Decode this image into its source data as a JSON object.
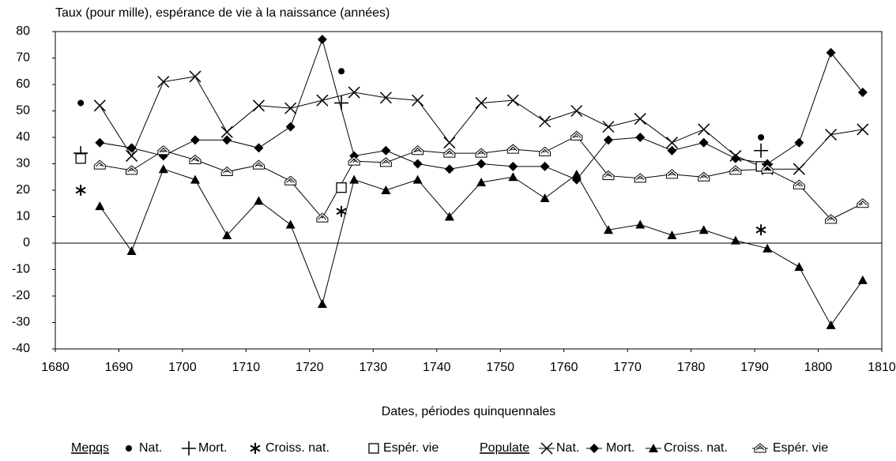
{
  "chart_data": {
    "type": "scatter",
    "ylabel": "Taux (pour mille), espérance de vie à la naissance (années)",
    "xlabel": "Dates, périodes quinquennales",
    "xlim": [
      1680,
      1810
    ],
    "xticks": [
      1680,
      1690,
      1700,
      1710,
      1720,
      1730,
      1740,
      1750,
      1760,
      1770,
      1780,
      1790,
      1800,
      1810
    ],
    "ylim": [
      -40,
      80
    ],
    "yticks": [
      -40,
      -30,
      -20,
      -10,
      0,
      10,
      20,
      30,
      40,
      50,
      60,
      70,
      80
    ],
    "zero_line": true,
    "series_groups": [
      {
        "name": "Mepqs",
        "connect": false,
        "x": [
          1684,
          1725,
          1791
        ],
        "series": [
          {
            "name": "Nat.",
            "marker": "dot",
            "color": "#000000",
            "values": [
              53,
              65,
              40
            ]
          },
          {
            "name": "Mort.",
            "marker": "plus",
            "color": "#000000",
            "values": [
              34,
              53,
              35
            ]
          },
          {
            "name": "Croiss. nat.",
            "marker": "star",
            "color": "#000000",
            "values": [
              20,
              12,
              5
            ]
          },
          {
            "name": "Espér. vie",
            "marker": "square",
            "color": "#000000",
            "values": [
              32,
              21,
              29
            ]
          }
        ]
      },
      {
        "name": "Populate",
        "connect": true,
        "x": [
          1687,
          1692,
          1697,
          1702,
          1707,
          1712,
          1717,
          1722,
          1727,
          1732,
          1737,
          1742,
          1747,
          1752,
          1757,
          1762,
          1767,
          1772,
          1777,
          1782,
          1787,
          1792,
          1797,
          1802,
          1807
        ],
        "series": [
          {
            "name": "Nat.",
            "marker": "x",
            "color": "#000000",
            "values": [
              52,
              33,
              61,
              63,
              42,
              52,
              51,
              54,
              57,
              55,
              54,
              38,
              53,
              54,
              46,
              50,
              44,
              47,
              38,
              43,
              33,
              28,
              28,
              41,
              43
            ]
          },
          {
            "name": "Mort.",
            "marker": "diamond",
            "color": "#000000",
            "values": [
              38,
              36,
              33,
              39,
              39,
              36,
              44,
              77,
              33,
              35,
              30,
              28,
              30,
              29,
              29,
              24,
              39,
              40,
              35,
              38,
              32,
              30,
              38,
              72,
              57
            ]
          },
          {
            "name": "Croiss. nat.",
            "marker": "triangle",
            "color": "#000000",
            "values": [
              14,
              -3,
              28,
              24,
              3,
              16,
              7,
              -23,
              24,
              20,
              24,
              10,
              23,
              25,
              17,
              26,
              5,
              7,
              3,
              5,
              1,
              -2,
              -9,
              -31,
              -14
            ]
          },
          {
            "name": "Espér. vie",
            "marker": "house",
            "color": "#000000",
            "values": [
              29.5,
              27.5,
              35,
              31.5,
              27,
              29.5,
              23.5,
              9.5,
              31,
              30.5,
              35,
              34,
              34,
              35.5,
              34.5,
              40.5,
              25.5,
              24.5,
              26,
              25,
              27.5,
              28,
              22,
              9,
              15
            ]
          }
        ]
      }
    ]
  }
}
